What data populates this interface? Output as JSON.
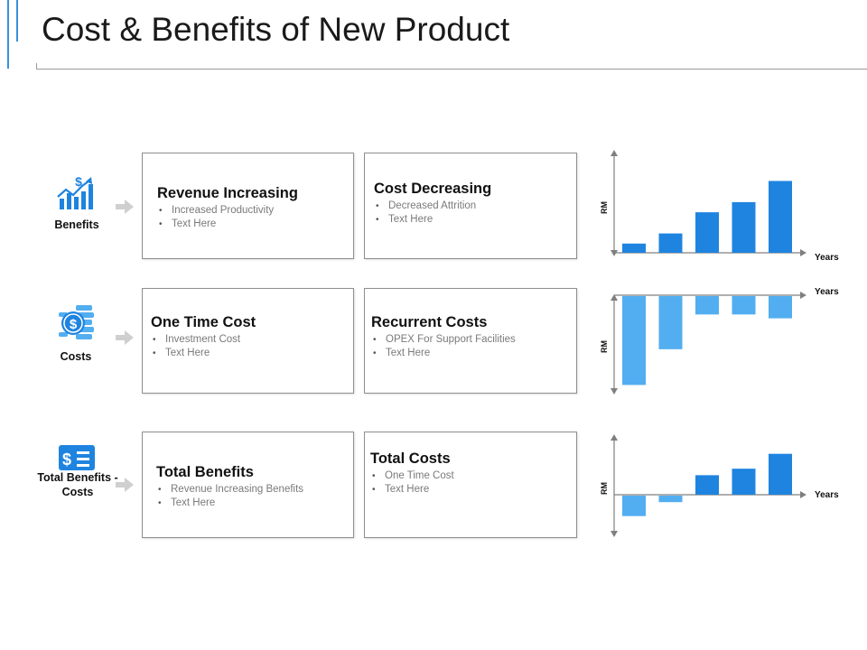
{
  "title": "Cost & Benefits of New Product",
  "colors": {
    "dark_bar": "#1f84e0",
    "light_bar": "#52aef0",
    "accent": "#3a8fd9",
    "icon_blue": "#1f84e0"
  },
  "rows": [
    {
      "label": "Benefits",
      "icon": "growth-chart-dollar-icon",
      "cards": [
        {
          "title": "Revenue Increasing",
          "items": [
            "Increased Productivity",
            "Text Here"
          ]
        },
        {
          "title": "Cost Decreasing",
          "items": [
            "Decreased Attrition",
            "Text Here"
          ]
        }
      ]
    },
    {
      "label": "Costs",
      "icon": "coin-stack-icon",
      "cards": [
        {
          "title": "One Time Cost",
          "items": [
            "Investment Cost",
            "Text Here"
          ]
        },
        {
          "title": "Recurrent Costs",
          "items": [
            "OPEX For Support Facilities",
            "Text Here"
          ]
        }
      ]
    },
    {
      "label": "Total Benefits - Costs",
      "icon": "wallet-card-icon",
      "cards": [
        {
          "title": "Total Benefits",
          "items": [
            "Revenue Increasing Benefits",
            "Text Here"
          ]
        },
        {
          "title": "Total Costs",
          "items": [
            "One Time Cost",
            "Text Here"
          ]
        }
      ]
    }
  ],
  "chart_data": [
    {
      "type": "bar",
      "xlabel": "Years",
      "ylabel": "RM",
      "values": [
        1,
        2.1,
        4.4,
        5.5,
        7.8
      ],
      "shade": [
        "dark",
        "dark",
        "dark",
        "dark",
        "dark"
      ],
      "ylim": [
        0,
        8.5
      ]
    },
    {
      "type": "bar",
      "xlabel": "Years",
      "ylabel": "RM",
      "values": [
        -9.2,
        -5.5,
        -1.9,
        -1.9,
        -2.3
      ],
      "shade": [
        "light",
        "light",
        "light",
        "light",
        "light"
      ],
      "ylim": [
        -9.5,
        0
      ]
    },
    {
      "type": "bar",
      "xlabel": "Years",
      "ylabel": "RM",
      "values": [
        -2.2,
        -0.7,
        2.1,
        2.8,
        4.4
      ],
      "shade": [
        "light",
        "light",
        "dark",
        "dark",
        "dark"
      ],
      "ylim": [
        -4,
        5
      ]
    }
  ]
}
